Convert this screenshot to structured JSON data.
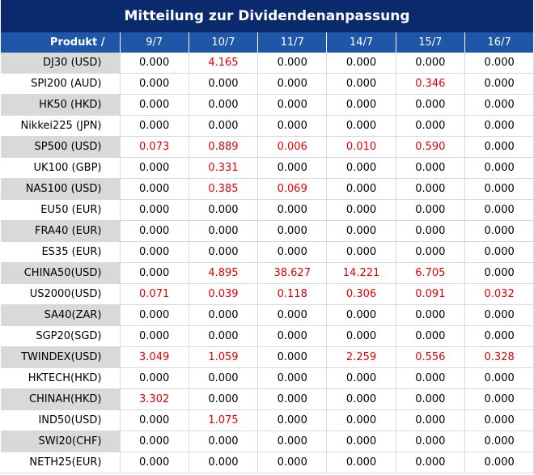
{
  "title": "Mitteilung zur Dividendenanpassung",
  "header": {
    "product_label": "Produkt /",
    "dates": [
      "9/7",
      "10/7",
      "11/7",
      "14/7",
      "15/7",
      "16/7"
    ]
  },
  "colors": {
    "title_bg": "#0b2a6e",
    "header_bg": "#1f57a8",
    "highlight": "#e60000",
    "shade": "#d9d9d9"
  },
  "rows": [
    {
      "product": "DJ30 (USD)",
      "values": [
        "0.000",
        "4.165",
        "0.000",
        "0.000",
        "0.000",
        "0.000"
      ]
    },
    {
      "product": "SPI200 (AUD)",
      "values": [
        "0.000",
        "0.000",
        "0.000",
        "0.000",
        "0.346",
        "0.000"
      ]
    },
    {
      "product": "HK50 (HKD)",
      "values": [
        "0.000",
        "0.000",
        "0.000",
        "0.000",
        "0.000",
        "0.000"
      ]
    },
    {
      "product": "Nikkei225 (JPN)",
      "values": [
        "0.000",
        "0.000",
        "0.000",
        "0.000",
        "0.000",
        "0.000"
      ]
    },
    {
      "product": "SP500 (USD)",
      "values": [
        "0.073",
        "0.889",
        "0.006",
        "0.010",
        "0.590",
        "0.000"
      ]
    },
    {
      "product": "UK100 (GBP)",
      "values": [
        "0.000",
        "0.331",
        "0.000",
        "0.000",
        "0.000",
        "0.000"
      ]
    },
    {
      "product": "NAS100 (USD)",
      "values": [
        "0.000",
        "0.385",
        "0.069",
        "0.000",
        "0.000",
        "0.000"
      ]
    },
    {
      "product": "EU50 (EUR)",
      "values": [
        "0.000",
        "0.000",
        "0.000",
        "0.000",
        "0.000",
        "0.000"
      ]
    },
    {
      "product": "FRA40 (EUR)",
      "values": [
        "0.000",
        "0.000",
        "0.000",
        "0.000",
        "0.000",
        "0.000"
      ]
    },
    {
      "product": "ES35 (EUR)",
      "values": [
        "0.000",
        "0.000",
        "0.000",
        "0.000",
        "0.000",
        "0.000"
      ]
    },
    {
      "product": "CHINA50(USD)",
      "values": [
        "0.000",
        "4.895",
        "38.627",
        "14.221",
        "6.705",
        "0.000"
      ]
    },
    {
      "product": "US2000(USD)",
      "values": [
        "0.071",
        "0.039",
        "0.118",
        "0.306",
        "0.091",
        "0.032"
      ]
    },
    {
      "product": "SA40(ZAR)",
      "values": [
        "0.000",
        "0.000",
        "0.000",
        "0.000",
        "0.000",
        "0.000"
      ]
    },
    {
      "product": "SGP20(SGD)",
      "values": [
        "0.000",
        "0.000",
        "0.000",
        "0.000",
        "0.000",
        "0.000"
      ]
    },
    {
      "product": "TWINDEX(USD)",
      "values": [
        "3.049",
        "1.059",
        "0.000",
        "2.259",
        "0.556",
        "0.328"
      ]
    },
    {
      "product": "HKTECH(HKD)",
      "values": [
        "0.000",
        "0.000",
        "0.000",
        "0.000",
        "0.000",
        "0.000"
      ]
    },
    {
      "product": "CHINAH(HKD)",
      "values": [
        "3.302",
        "0.000",
        "0.000",
        "0.000",
        "0.000",
        "0.000"
      ]
    },
    {
      "product": "IND50(USD)",
      "values": [
        "0.000",
        "1.075",
        "0.000",
        "0.000",
        "0.000",
        "0.000"
      ]
    },
    {
      "product": "SWI20(CHF)",
      "values": [
        "0.000",
        "0.000",
        "0.000",
        "0.000",
        "0.000",
        "0.000"
      ]
    },
    {
      "product": "NETH25(EUR)",
      "values": [
        "0.000",
        "0.000",
        "0.000",
        "0.000",
        "0.000",
        "0.000"
      ]
    }
  ]
}
